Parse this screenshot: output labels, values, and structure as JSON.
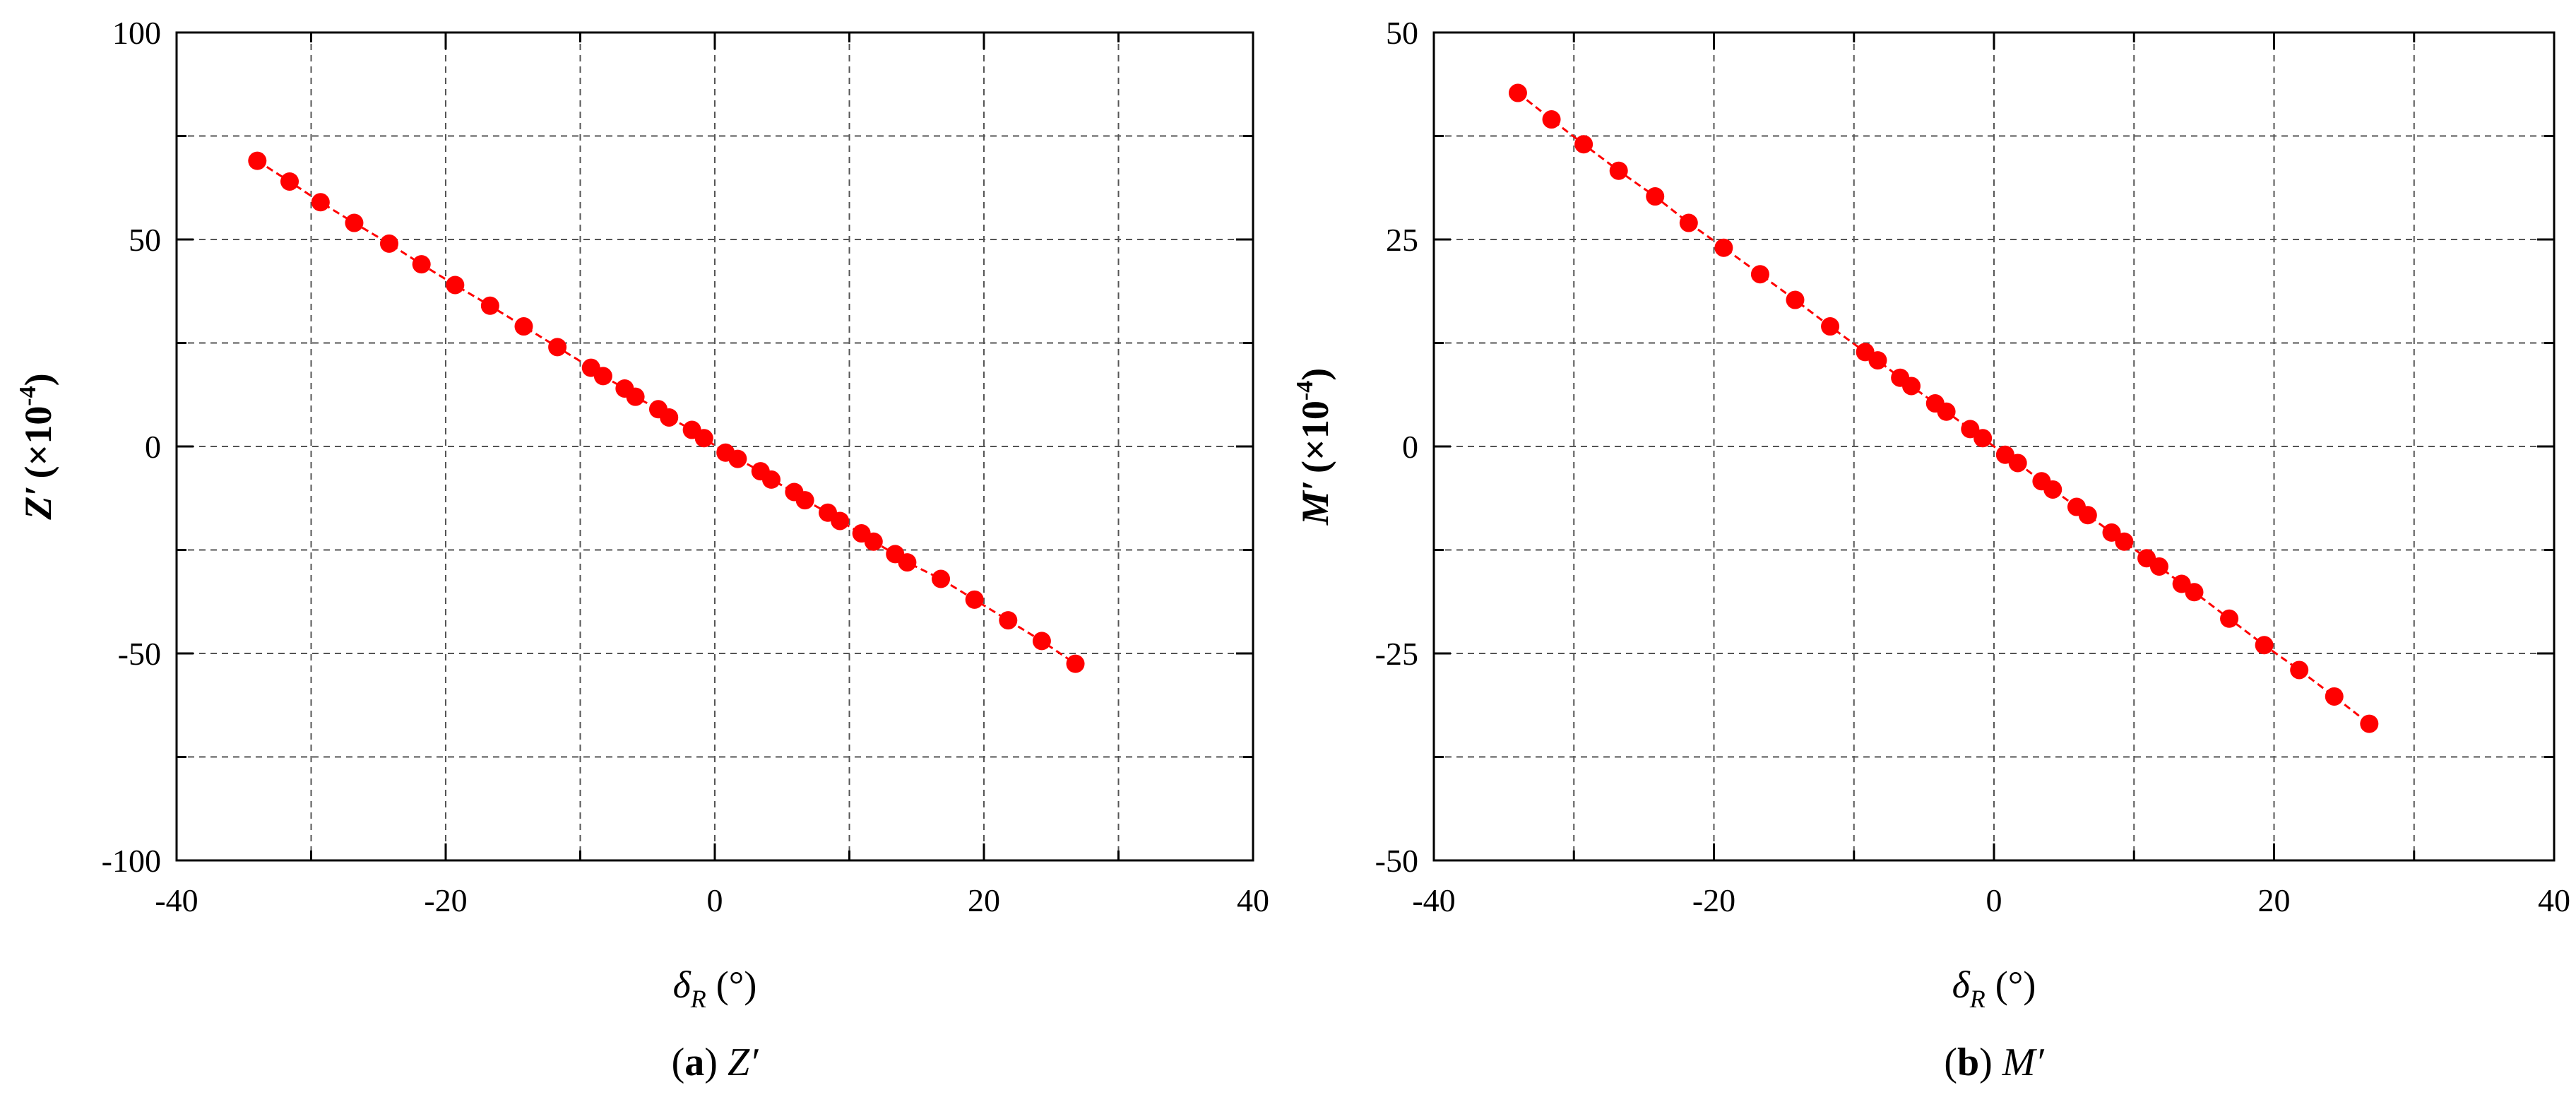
{
  "chart_data": [
    {
      "type": "line",
      "panel_label": "a",
      "caption_symbol": "Z′",
      "xlabel_symbol": "δ",
      "xlabel_subscript": "R",
      "xlabel_unit": "(°)",
      "ylabel_symbol": "Z′",
      "ylabel_unit": "(×10",
      "ylabel_exponent": "-4",
      "ylabel_close": ")",
      "xlim": [
        -40,
        40
      ],
      "ylim": [
        -100,
        100
      ],
      "xticks": [
        -40,
        -20,
        0,
        20,
        40
      ],
      "yticks": [
        -100,
        -50,
        0,
        50,
        100
      ],
      "grid": true,
      "marker_color": "#ff0000",
      "series": [
        {
          "x": [
            -34,
            -31.6,
            -29.3,
            -26.8,
            -24.2,
            -21.8,
            -19.3,
            -16.7,
            -14.2,
            -11.7,
            -9.2,
            -8.3,
            -6.7,
            -5.9,
            -4.2,
            -3.4,
            -1.7,
            -0.8,
            0.8,
            1.7,
            3.4,
            4.2,
            5.9,
            6.7,
            8.4,
            9.3,
            10.9,
            11.8,
            13.4,
            14.3,
            16.8,
            19.3,
            21.8,
            24.3,
            26.8
          ],
          "y": [
            69,
            64,
            59,
            54,
            49,
            44,
            39,
            34,
            29,
            24,
            19,
            17,
            14,
            12,
            9,
            7,
            4,
            2,
            -1.5,
            -3,
            -6,
            -8,
            -11,
            -13,
            -16,
            -18,
            -21,
            -23,
            -26,
            -28,
            -32,
            -37,
            -42,
            -47,
            -52.5
          ]
        }
      ]
    },
    {
      "type": "line",
      "panel_label": "b",
      "caption_symbol": "M′",
      "xlabel_symbol": "δ",
      "xlabel_subscript": "R",
      "xlabel_unit": "(°)",
      "ylabel_symbol": "M′",
      "ylabel_unit": "(×10",
      "ylabel_exponent": "-4",
      "ylabel_close": ")",
      "xlim": [
        -40,
        40
      ],
      "ylim": [
        -50,
        50
      ],
      "xticks": [
        -40,
        -20,
        0,
        20,
        40
      ],
      "yticks": [
        -50,
        -25,
        0,
        25,
        50
      ],
      "grid": true,
      "marker_color": "#ff0000",
      "series": [
        {
          "x": [
            -34,
            -31.6,
            -29.3,
            -26.8,
            -24.2,
            -21.8,
            -19.3,
            -16.7,
            -14.2,
            -11.7,
            -9.2,
            -8.3,
            -6.7,
            -5.9,
            -4.2,
            -3.4,
            -1.7,
            -0.8,
            0.8,
            1.7,
            3.4,
            4.2,
            5.9,
            6.7,
            8.4,
            9.3,
            10.9,
            11.8,
            13.4,
            14.3,
            16.8,
            19.3,
            21.8,
            24.3,
            26.8
          ],
          "y": [
            42.7,
            39.5,
            36.5,
            33.3,
            30.2,
            27,
            24,
            20.8,
            17.7,
            14.5,
            11.4,
            10.4,
            8.3,
            7.3,
            5.2,
            4.2,
            2.1,
            1,
            -1,
            -2,
            -4.2,
            -5.2,
            -7.3,
            -8.3,
            -10.4,
            -11.5,
            -13.5,
            -14.5,
            -16.6,
            -17.6,
            -20.8,
            -24,
            -27,
            -30.2,
            -33.5
          ]
        }
      ]
    }
  ]
}
